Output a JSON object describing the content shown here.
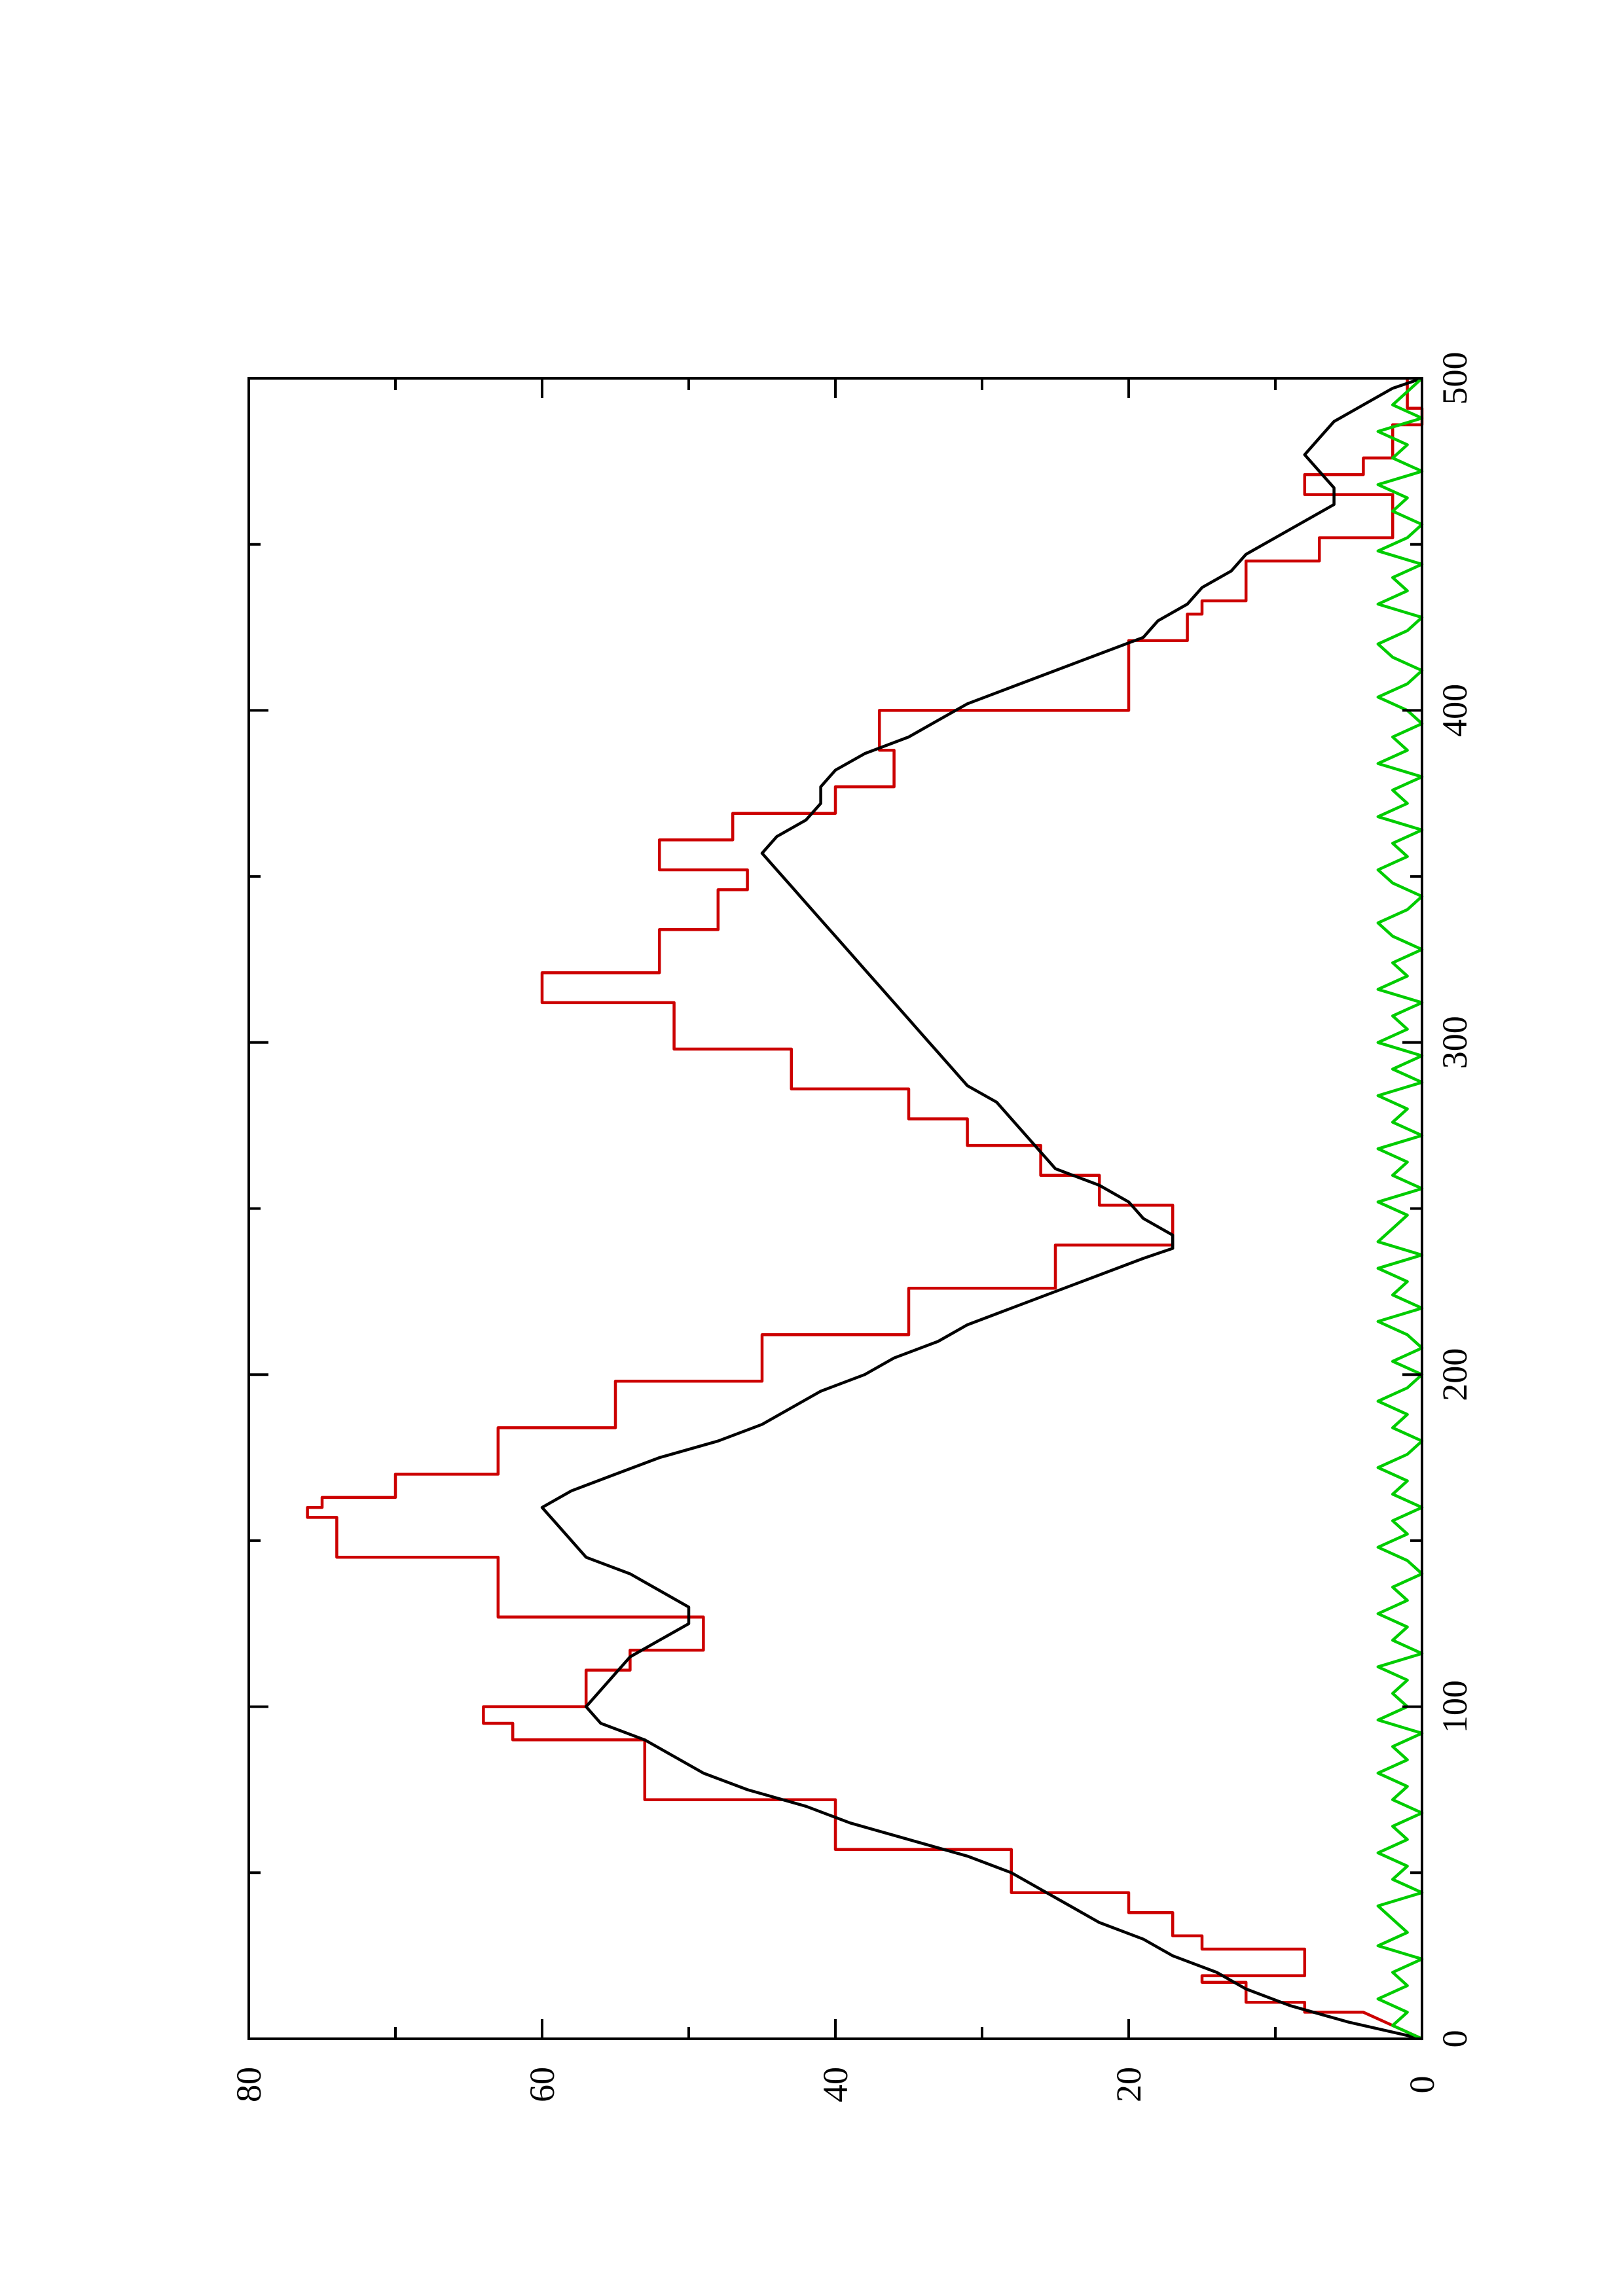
{
  "chart_data": {
    "type": "line",
    "title": "",
    "xlabel": "",
    "ylabel": "",
    "orientation": "rotated 90 degrees counter-clockwise (x axis runs bottom-to-top on the right edge, y axis runs left-to-right along the bottom edge)",
    "xlim": [
      0,
      500
    ],
    "ylim": [
      0,
      80
    ],
    "x_ticks": [
      0,
      100,
      200,
      300,
      400,
      500
    ],
    "x_tick_labels": [
      "0",
      "100",
      "200",
      "300",
      "400",
      "500"
    ],
    "x_minor_ticks": [
      50,
      150,
      250,
      350,
      450
    ],
    "y_ticks": [
      0,
      20,
      40,
      60,
      80
    ],
    "y_tick_labels": [
      "0",
      "20",
      "40",
      "60",
      "80"
    ],
    "y_minor_ticks": [
      10,
      30,
      50,
      70
    ],
    "grid": false,
    "legend": "none",
    "series": [
      {
        "color": "#cc0000",
        "x": [
          0,
          8,
          8,
          11,
          11,
          17,
          17,
          19,
          19,
          27,
          27,
          31,
          31,
          38,
          38,
          44,
          44,
          57,
          57,
          72,
          72,
          90,
          90,
          95,
          95,
          100,
          100,
          111,
          111,
          117,
          117,
          127,
          127,
          145,
          145,
          157,
          157,
          160,
          160,
          163,
          163,
          170,
          170,
          184,
          184,
          198,
          198,
          212,
          212,
          226,
          226,
          239,
          239,
          251,
          251,
          260,
          260,
          269,
          269,
          277,
          277,
          286,
          286,
          298,
          298,
          312,
          312,
          321,
          321,
          334,
          334,
          346,
          346,
          352,
          352,
          361,
          361,
          369,
          369,
          377,
          377,
          388,
          388,
          400,
          400,
          421,
          421,
          429,
          429,
          433,
          433,
          445,
          445,
          452,
          452,
          465,
          465,
          471,
          471,
          476,
          476,
          486,
          486,
          491,
          491,
          500
        ],
        "y": [
          0,
          4,
          8,
          8,
          12,
          12,
          15,
          15,
          8,
          8,
          15,
          15,
          17,
          17,
          20,
          20,
          28,
          28,
          40,
          40,
          53,
          53,
          62,
          62,
          64,
          64,
          57,
          57,
          54,
          54,
          49,
          49,
          63,
          63,
          74,
          74,
          76,
          76,
          75,
          75,
          70,
          70,
          63,
          63,
          55,
          55,
          45,
          45,
          35,
          35,
          25,
          25,
          17,
          17,
          22,
          22,
          26,
          26,
          31,
          31,
          35,
          35,
          43,
          43,
          51,
          51,
          60,
          60,
          52,
          52,
          48,
          48,
          46,
          46,
          52,
          52,
          47,
          47,
          40,
          40,
          36,
          36,
          37,
          37,
          20,
          20,
          16,
          16,
          15,
          15,
          12,
          12,
          7,
          7,
          2,
          2,
          8,
          8,
          4,
          4,
          2,
          2,
          0,
          0,
          1,
          1
        ]
      },
      {
        "color": "#000000",
        "x": [
          0,
          5,
          10,
          15,
          20,
          25,
          30,
          35,
          40,
          45,
          50,
          55,
          60,
          65,
          70,
          75,
          80,
          85,
          90,
          95,
          100,
          105,
          110,
          115,
          120,
          125,
          130,
          135,
          140,
          145,
          150,
          155,
          160,
          165,
          170,
          175,
          180,
          185,
          190,
          195,
          200,
          205,
          210,
          215,
          220,
          225,
          230,
          235,
          238,
          242,
          247,
          252,
          257,
          262,
          267,
          272,
          277,
          282,
          287,
          292,
          297,
          302,
          307,
          312,
          317,
          322,
          327,
          332,
          337,
          342,
          347,
          352,
          357,
          362,
          367,
          372,
          377,
          382,
          387,
          392,
          397,
          402,
          407,
          412,
          417,
          422,
          427,
          432,
          437,
          442,
          447,
          452,
          457,
          462,
          467,
          472,
          477,
          482,
          487,
          492,
          497,
          500
        ],
        "y": [
          0,
          5,
          9,
          12,
          14,
          17,
          19,
          22,
          24,
          26,
          28,
          31,
          35,
          39,
          42,
          46,
          49,
          51,
          53,
          56,
          57,
          56,
          55,
          54,
          52,
          50,
          50,
          52,
          54,
          57,
          58,
          59,
          60,
          58,
          55,
          52,
          48,
          45,
          43,
          41,
          38,
          36,
          33,
          31,
          28,
          25,
          22,
          19,
          17,
          17,
          19,
          20,
          22,
          25,
          26,
          27,
          28,
          29,
          31,
          32,
          33,
          34,
          35,
          36,
          37,
          38,
          39,
          40,
          41,
          42,
          43,
          44,
          45,
          44,
          42,
          41,
          41,
          40,
          38,
          35,
          33,
          31,
          28,
          25,
          22,
          19,
          18,
          16,
          15,
          13,
          12,
          10,
          8,
          6,
          6,
          7,
          8,
          7,
          6,
          4,
          2,
          0
        ]
      },
      {
        "color": "#00cc00",
        "x": [
          0,
          4,
          8,
          12,
          16,
          20,
          24,
          28,
          32,
          36,
          40,
          44,
          48,
          52,
          56,
          60,
          64,
          68,
          72,
          76,
          80,
          84,
          88,
          92,
          96,
          100,
          104,
          108,
          112,
          116,
          120,
          124,
          128,
          132,
          136,
          140,
          144,
          148,
          152,
          156,
          160,
          164,
          168,
          172,
          176,
          180,
          184,
          188,
          192,
          196,
          200,
          204,
          208,
          212,
          216,
          220,
          224,
          228,
          232,
          236,
          240,
          244,
          248,
          252,
          256,
          260,
          264,
          268,
          272,
          276,
          280,
          284,
          288,
          292,
          296,
          300,
          304,
          308,
          312,
          316,
          320,
          324,
          328,
          332,
          336,
          340,
          344,
          348,
          352,
          356,
          360,
          364,
          368,
          372,
          376,
          380,
          384,
          388,
          392,
          396,
          400,
          404,
          408,
          412,
          416,
          420,
          424,
          428,
          432,
          436,
          440,
          444,
          448,
          452,
          456,
          460,
          464,
          468,
          472,
          476,
          480,
          484,
          488,
          492,
          496,
          500
        ],
        "y": [
          0,
          2,
          1,
          3,
          1,
          2,
          0,
          3,
          1,
          2,
          3,
          0,
          2,
          1,
          3,
          1,
          2,
          0,
          2,
          1,
          3,
          1,
          2,
          0,
          3,
          1,
          2,
          1,
          3,
          0,
          2,
          1,
          3,
          1,
          2,
          0,
          1,
          3,
          1,
          2,
          0,
          2,
          1,
          3,
          1,
          0,
          2,
          1,
          3,
          1,
          0,
          2,
          0,
          1,
          3,
          0,
          2,
          1,
          3,
          0,
          3,
          2,
          1,
          3,
          0,
          2,
          1,
          3,
          0,
          2,
          1,
          3,
          0,
          2,
          0,
          3,
          1,
          2,
          0,
          3,
          1,
          2,
          0,
          2,
          3,
          1,
          0,
          2,
          3,
          1,
          2,
          0,
          3,
          1,
          2,
          0,
          3,
          1,
          2,
          0,
          1,
          3,
          1,
          0,
          2,
          3,
          1,
          0,
          3,
          1,
          2,
          0,
          3,
          1,
          0,
          2,
          1,
          3,
          0,
          2,
          1,
          3,
          0,
          2,
          1,
          0
        ]
      }
    ]
  }
}
